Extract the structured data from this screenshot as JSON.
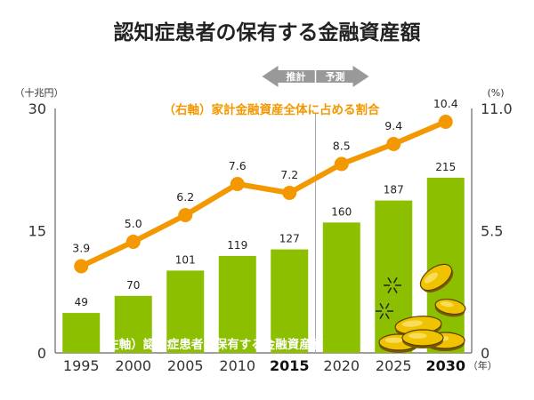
{
  "title": "認知症患者の保有する金融資産額",
  "left_axis_unit": "（十兆円）",
  "right_axis_unit": "(%)",
  "x_axis_suffix": "（年）",
  "period_arrow": {
    "left": "推計",
    "right": "予測"
  },
  "colors": {
    "bar": "#8cbf00",
    "line": "#f39800",
    "arrow": "#999999",
    "axis": "#666666",
    "coin": "#f0c300"
  },
  "chart_data": {
    "type": "bar",
    "categories": [
      "1995",
      "2000",
      "2005",
      "2010",
      "2015",
      "2020",
      "2025",
      "2030"
    ],
    "bold_categories": [
      "2015",
      "2030"
    ],
    "series": [
      {
        "name": "（左軸）認知症患者の保有する金融資産額",
        "type": "bar",
        "axis": "left",
        "values": [
          49,
          70,
          101,
          119,
          127,
          160,
          187,
          215
        ],
        "labels": [
          "49",
          "70",
          "101",
          "119",
          "127",
          "160",
          "187",
          "215"
        ]
      },
      {
        "name": "（右軸）家計金融資産全体に占める割合",
        "type": "line",
        "axis": "right",
        "values": [
          3.9,
          5.0,
          6.2,
          7.6,
          7.2,
          8.5,
          9.4,
          10.4
        ],
        "labels": [
          "3.9",
          "5.0",
          "6.2",
          "7.6",
          "7.2",
          "8.5",
          "9.4",
          "10.4"
        ]
      }
    ],
    "left_axis": {
      "ylim": [
        0,
        30
      ],
      "ticks": [
        "0",
        "15",
        "30"
      ]
    },
    "right_axis": {
      "ylim": [
        0,
        11
      ],
      "ticks": [
        "0",
        "5.5",
        "11.0"
      ]
    },
    "divider_after": "2015",
    "grid": false
  }
}
